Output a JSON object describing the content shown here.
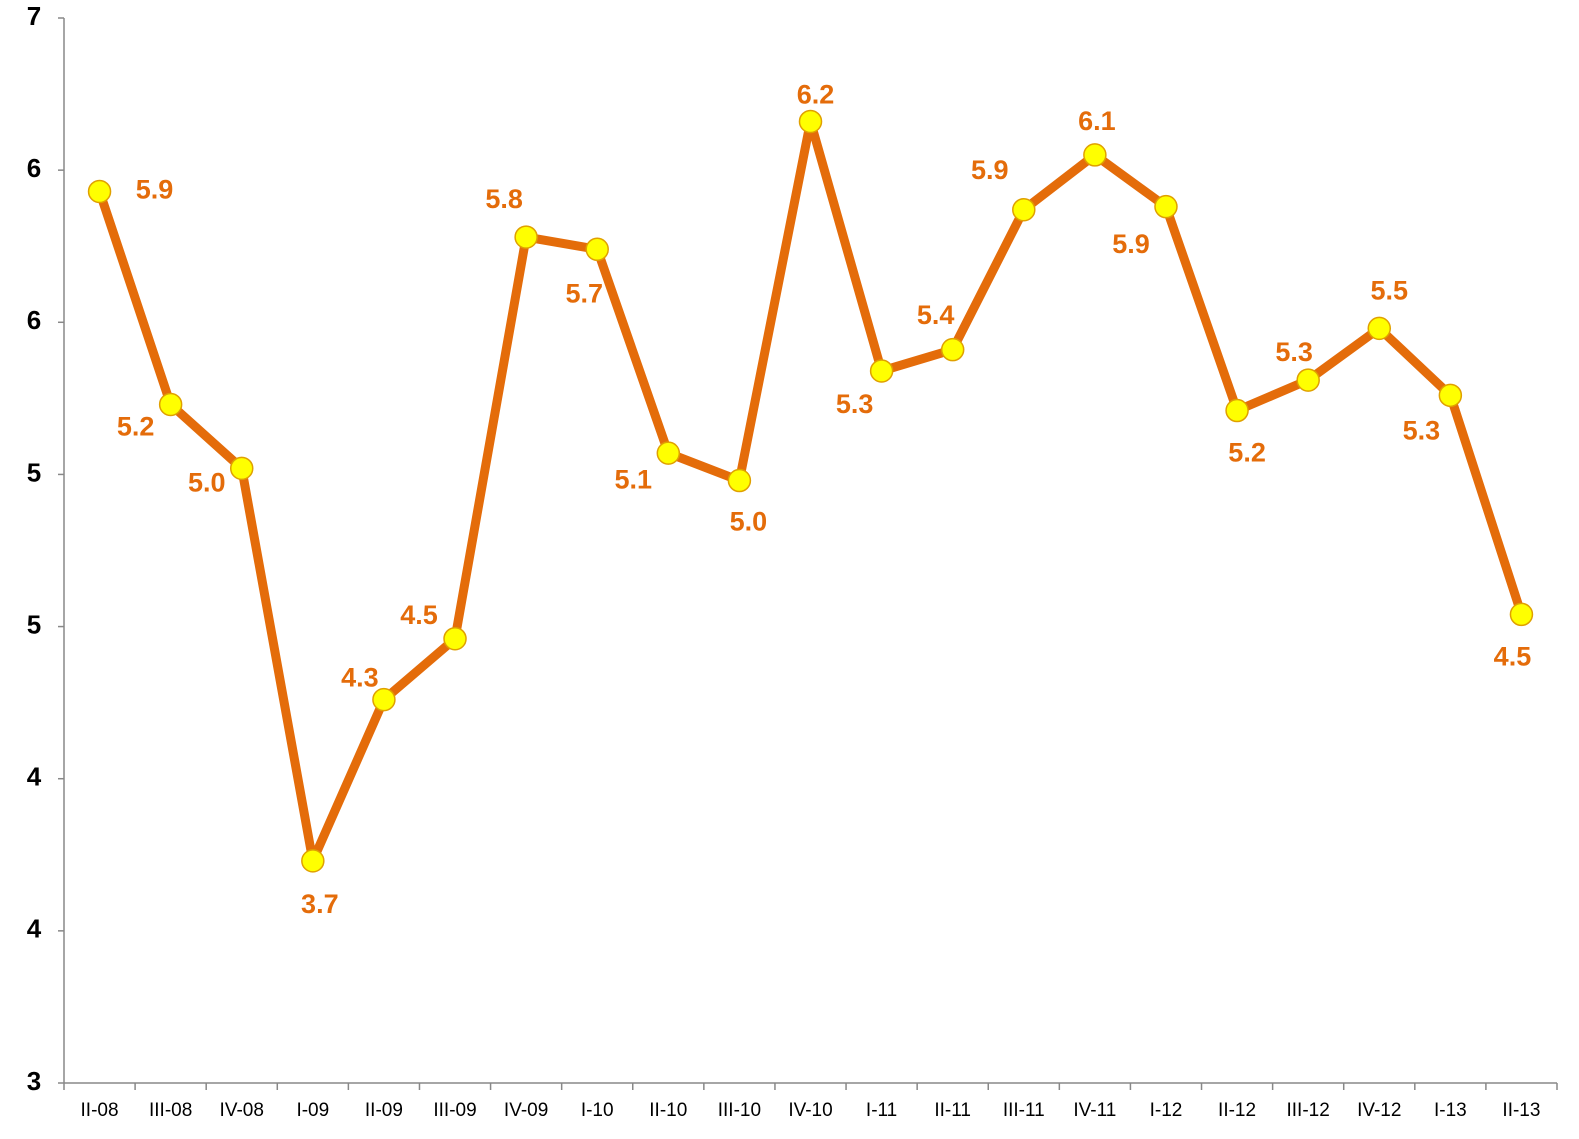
{
  "chart_data": {
    "type": "line",
    "categories": [
      "II-08",
      "III-08",
      "IV-08",
      "I-09",
      "II-09",
      "III-09",
      "IV-09",
      "I-10",
      "II-10",
      "III-10",
      "IV-10",
      "I-11",
      "II-11",
      "III-11",
      "IV-11",
      "I-12",
      "II-12",
      "III-12",
      "IV-12",
      "I-13",
      "II-13"
    ],
    "series": [
      {
        "name": null,
        "color": "#e46c0a",
        "marker_color": "#ffff00",
        "values": [
          5.93,
          5.23,
          5.02,
          3.73,
          4.26,
          4.46,
          5.78,
          5.74,
          5.07,
          4.98,
          6.16,
          5.34,
          5.41,
          5.87,
          6.05,
          5.88,
          5.21,
          5.31,
          5.48,
          5.26,
          4.54
        ],
        "value_labels": [
          "5.9",
          "5.2",
          "5.0",
          "3.7",
          "4.3",
          "4.5",
          "5.8",
          "5.7",
          "5.1",
          "5.0",
          "6.2",
          "5.3",
          "5.4",
          "5.9",
          "6.1",
          "5.9",
          "5.2",
          "5.3",
          "5.5",
          "5.3",
          "4.5"
        ]
      }
    ],
    "ylim": [
      3,
      6.5
    ],
    "yticks": [
      {
        "value": 3,
        "label": "3"
      },
      {
        "value": 3.5,
        "label": "4"
      },
      {
        "value": 4,
        "label": "4"
      },
      {
        "value": 4.5,
        "label": "5"
      },
      {
        "value": 5,
        "label": "5"
      },
      {
        "value": 5.5,
        "label": "6"
      },
      {
        "value": 6,
        "label": "6"
      },
      {
        "value": 6.5,
        "label": "7"
      }
    ],
    "grid": false
  }
}
